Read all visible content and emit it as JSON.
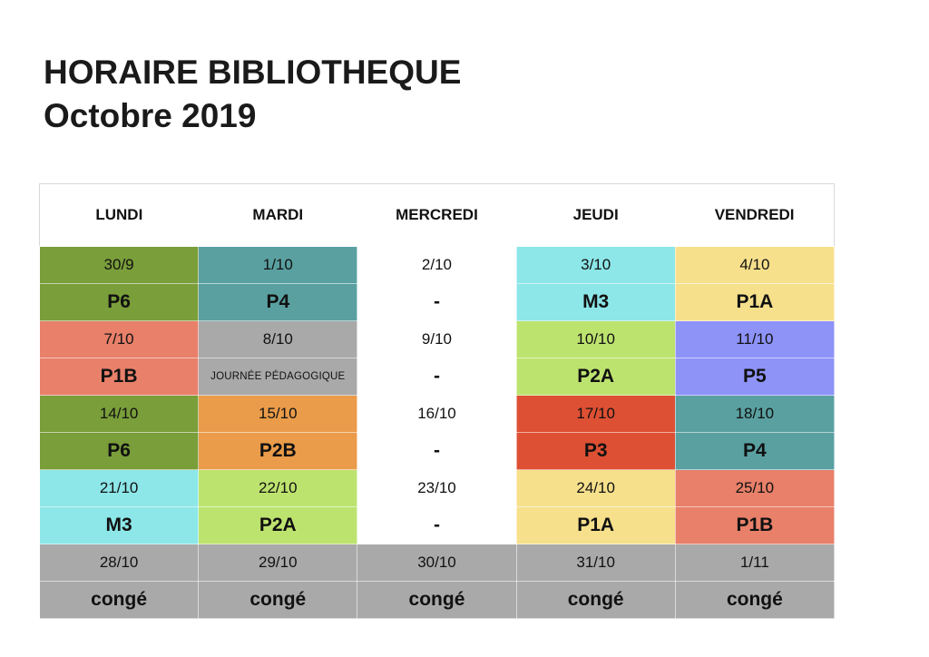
{
  "title": {
    "line1": "HORAIRE BIBLIOTHEQUE",
    "line2": "Octobre 2019"
  },
  "days": [
    "LUNDI",
    "MARDI",
    "MERCREDI",
    "JEUDI",
    "VENDREDI"
  ],
  "weeks": [
    [
      {
        "date": "30/9",
        "label": "P6",
        "color": "#7a9e3a"
      },
      {
        "date": "1/10",
        "label": "P4",
        "color": "#5aa0a1"
      },
      {
        "date": "2/10",
        "label": "-",
        "color": "#ffffff"
      },
      {
        "date": "3/10",
        "label": "M3",
        "color": "#8de6e8"
      },
      {
        "date": "4/10",
        "label": "P1A",
        "color": "#f7e08c"
      }
    ],
    [
      {
        "date": "7/10",
        "label": "P1B",
        "color": "#e8806a"
      },
      {
        "date": "8/10",
        "label": "JOURNÉE PÉDAGOGIQUE",
        "color": "#a9a9a9",
        "small": true
      },
      {
        "date": "9/10",
        "label": "-",
        "color": "#ffffff"
      },
      {
        "date": "10/10",
        "label": "P2A",
        "color": "#bde36f"
      },
      {
        "date": "11/10",
        "label": "P5",
        "color": "#8e93f7"
      }
    ],
    [
      {
        "date": "14/10",
        "label": "P6",
        "color": "#7a9e3a"
      },
      {
        "date": "15/10",
        "label": "P2B",
        "color": "#ea9c4a"
      },
      {
        "date": "16/10",
        "label": "-",
        "color": "#ffffff"
      },
      {
        "date": "17/10",
        "label": "P3",
        "color": "#de5034"
      },
      {
        "date": "18/10",
        "label": "P4",
        "color": "#5aa0a1"
      }
    ],
    [
      {
        "date": "21/10",
        "label": "M3",
        "color": "#8de6e8"
      },
      {
        "date": "22/10",
        "label": "P2A",
        "color": "#bde36f"
      },
      {
        "date": "23/10",
        "label": "-",
        "color": "#ffffff"
      },
      {
        "date": "24/10",
        "label": "P1A",
        "color": "#f7e08c"
      },
      {
        "date": "25/10",
        "label": "P1B",
        "color": "#e8806a"
      }
    ],
    [
      {
        "date": "28/10",
        "label": "congé",
        "color": "#a9a9a9"
      },
      {
        "date": "29/10",
        "label": "congé",
        "color": "#a9a9a9"
      },
      {
        "date": "30/10",
        "label": "congé",
        "color": "#a9a9a9"
      },
      {
        "date": "31/10",
        "label": "congé",
        "color": "#a9a9a9"
      },
      {
        "date": "1/11",
        "label": "congé",
        "color": "#a9a9a9"
      }
    ]
  ]
}
